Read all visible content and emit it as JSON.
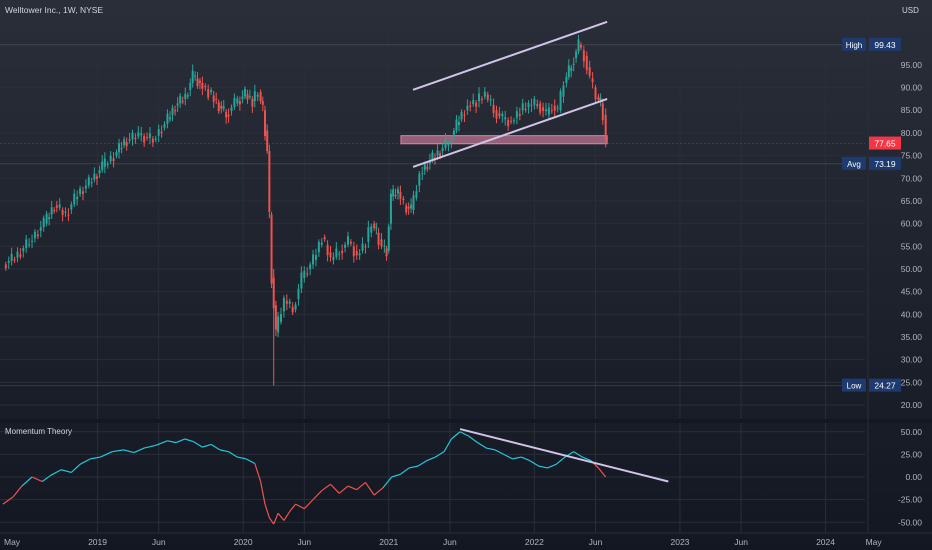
{
  "header": {
    "symbol": "Welltower Inc., 1W, NYSE",
    "currency": "USD"
  },
  "colors": {
    "background_top": "#2a2e39",
    "background_bottom": "#131722",
    "up": "#26a69a",
    "down": "#ef5350",
    "trendline": "#d1c4e9",
    "zone": "#f48fb1",
    "badge_blue": "#1e3a6e",
    "badge_red": "#f23645",
    "momentum_down": "#ef5350",
    "momentum_up": "#26c6da",
    "grid": "#2a2e39"
  },
  "price_axis": {
    "ticks": [
      "95.00",
      "90.00",
      "85.00",
      "80.00",
      "75.00",
      "70.00",
      "65.00",
      "60.00",
      "55.00",
      "50.00",
      "45.00",
      "40.00",
      "35.00",
      "30.00",
      "25.00",
      "20.00"
    ],
    "high_label": "High",
    "high_value": "99.43",
    "last_value": "77.65",
    "avg_label": "Avg",
    "avg_value": "73.19",
    "low_label": "Low",
    "low_value": "24.27"
  },
  "time_axis": {
    "ticks": [
      "May",
      "2019",
      "Jun",
      "2020",
      "Jun",
      "2021",
      "Jun",
      "2022",
      "Jun",
      "2023",
      "Jun",
      "2024",
      "May"
    ]
  },
  "indicator": {
    "name": "Momentum Theory",
    "ticks": [
      "50.00",
      "25.00",
      "0.00",
      "-25.00",
      "-50.00"
    ]
  },
  "chart_data": [
    {
      "type": "candlestick",
      "title": "Welltower Inc., 1W, NYSE",
      "ylabel": "USD",
      "ylim": [
        18,
        104
      ],
      "xlim": [
        "2018-05",
        "2024-05"
      ],
      "grid": true,
      "key_levels": {
        "high": 99.43,
        "avg": 73.19,
        "low": 24.27,
        "last": 77.65
      },
      "annotations": {
        "rising_channel_upper": [
          [
            "2021-03",
            89.5
          ],
          [
            "2022-07",
            104.5
          ]
        ],
        "rising_channel_lower": [
          [
            "2021-03",
            72.5
          ],
          [
            "2022-07",
            87.5
          ]
        ],
        "resistance_zone": {
          "from": "2021-02",
          "to": "2022-07",
          "y0": 77.6,
          "y1": 79.4
        }
      },
      "series": [
        {
          "values": [
            [
              2018.37,
              52.5
            ],
            [
              2018.45,
              56.0
            ],
            [
              2018.55,
              60.0
            ],
            [
              2018.65,
              64.0
            ],
            [
              2018.72,
              62.0
            ],
            [
              2018.8,
              66.5
            ],
            [
              2018.88,
              69.0
            ],
            [
              2018.96,
              72.5
            ],
            [
              2019.05,
              75.0
            ],
            [
              2019.13,
              78.0
            ],
            [
              2019.2,
              79.5
            ],
            [
              2019.3,
              78.5
            ],
            [
              2019.4,
              82.0
            ],
            [
              2019.48,
              86.0
            ],
            [
              2019.55,
              88.0
            ],
            [
              2019.62,
              92.5
            ],
            [
              2019.67,
              91.0
            ],
            [
              2019.72,
              89.0
            ],
            [
              2019.78,
              86.0
            ],
            [
              2019.85,
              84.0
            ],
            [
              2019.9,
              86.5
            ],
            [
              2019.96,
              88.5
            ],
            [
              2020.03,
              87.0
            ],
            [
              2020.08,
              89.0
            ],
            [
              2020.12,
              85.0
            ],
            [
              2020.15,
              76.0
            ],
            [
              2020.18,
              48.0
            ],
            [
              2020.21,
              36.0
            ],
            [
              2020.24,
              43.0
            ],
            [
              2020.3,
              41.0
            ],
            [
              2020.36,
              48.0
            ],
            [
              2020.42,
              52.0
            ],
            [
              2020.5,
              57.0
            ],
            [
              2020.56,
              52.0
            ],
            [
              2020.62,
              54.0
            ],
            [
              2020.68,
              56.0
            ],
            [
              2020.74,
              53.0
            ],
            [
              2020.8,
              56.0
            ],
            [
              2020.86,
              60.0
            ],
            [
              2020.9,
              58.0
            ],
            [
              2020.93,
              55.0
            ],
            [
              2020.97,
              54.0
            ],
            [
              2021.0,
              66.0
            ],
            [
              2021.03,
              67.0
            ],
            [
              2021.08,
              64.0
            ],
            [
              2021.12,
              63.0
            ],
            [
              2021.17,
              71.0
            ],
            [
              2021.23,
              74.0
            ],
            [
              2021.3,
              76.0
            ],
            [
              2021.37,
              78.0
            ],
            [
              2021.43,
              83.0
            ],
            [
              2021.5,
              86.0
            ],
            [
              2021.56,
              87.0
            ],
            [
              2021.62,
              88.5
            ],
            [
              2021.68,
              85.0
            ],
            [
              2021.74,
              83.0
            ],
            [
              2021.8,
              82.5
            ],
            [
              2021.86,
              85.0
            ],
            [
              2021.92,
              86.0
            ],
            [
              2021.98,
              86.5
            ],
            [
              2022.04,
              84.0
            ],
            [
              2022.1,
              86.0
            ],
            [
              2022.14,
              85.0
            ],
            [
              2022.18,
              91.0
            ],
            [
              2022.22,
              95.0
            ],
            [
              2022.27,
              99.4
            ],
            [
              2022.32,
              97.0
            ],
            [
              2022.36,
              92.0
            ],
            [
              2022.4,
              88.0
            ],
            [
              2022.44,
              86.5
            ],
            [
              2022.47,
              84.0
            ],
            [
              2022.49,
              77.6
            ]
          ]
        }
      ]
    },
    {
      "type": "line",
      "title": "Momentum Theory",
      "ylim": [
        -60,
        58
      ],
      "grid": true,
      "annotations": {
        "divergence_line": [
          [
            2021.49,
            53
          ],
          [
            2022.92,
            -5
          ]
        ]
      },
      "series": [
        {
          "values": [
            [
              2018.35,
              -30
            ],
            [
              2018.42,
              -22
            ],
            [
              2018.48,
              -10
            ],
            [
              2018.55,
              0
            ],
            [
              2018.62,
              -5
            ],
            [
              2018.68,
              2
            ],
            [
              2018.75,
              8
            ],
            [
              2018.82,
              5
            ],
            [
              2018.88,
              14
            ],
            [
              2018.95,
              20
            ],
            [
              2019.02,
              22
            ],
            [
              2019.1,
              28
            ],
            [
              2019.18,
              30
            ],
            [
              2019.25,
              27
            ],
            [
              2019.32,
              32
            ],
            [
              2019.4,
              35
            ],
            [
              2019.48,
              40
            ],
            [
              2019.54,
              38
            ],
            [
              2019.6,
              42
            ],
            [
              2019.66,
              39
            ],
            [
              2019.72,
              33
            ],
            [
              2019.78,
              36
            ],
            [
              2019.84,
              30
            ],
            [
              2019.9,
              28
            ],
            [
              2019.96,
              22
            ],
            [
              2020.02,
              20
            ],
            [
              2020.08,
              15
            ],
            [
              2020.12,
              -5
            ],
            [
              2020.15,
              -30
            ],
            [
              2020.18,
              -45
            ],
            [
              2020.21,
              -52
            ],
            [
              2020.24,
              -40
            ],
            [
              2020.28,
              -48
            ],
            [
              2020.32,
              -38
            ],
            [
              2020.36,
              -30
            ],
            [
              2020.42,
              -35
            ],
            [
              2020.48,
              -25
            ],
            [
              2020.54,
              -15
            ],
            [
              2020.6,
              -8
            ],
            [
              2020.66,
              -18
            ],
            [
              2020.72,
              -10
            ],
            [
              2020.78,
              -14
            ],
            [
              2020.84,
              -6
            ],
            [
              2020.9,
              -20
            ],
            [
              2020.96,
              -12
            ],
            [
              2021.02,
              0
            ],
            [
              2021.08,
              3
            ],
            [
              2021.14,
              10
            ],
            [
              2021.2,
              12
            ],
            [
              2021.26,
              18
            ],
            [
              2021.32,
              22
            ],
            [
              2021.38,
              28
            ],
            [
              2021.43,
              42
            ],
            [
              2021.49,
              50
            ],
            [
              2021.55,
              45
            ],
            [
              2021.61,
              38
            ],
            [
              2021.67,
              32
            ],
            [
              2021.73,
              30
            ],
            [
              2021.79,
              25
            ],
            [
              2021.85,
              20
            ],
            [
              2021.91,
              22
            ],
            [
              2021.97,
              18
            ],
            [
              2022.03,
              12
            ],
            [
              2022.09,
              10
            ],
            [
              2022.15,
              14
            ],
            [
              2022.21,
              22
            ],
            [
              2022.27,
              28
            ],
            [
              2022.33,
              22
            ],
            [
              2022.39,
              18
            ],
            [
              2022.44,
              10
            ],
            [
              2022.49,
              0
            ]
          ]
        }
      ]
    }
  ]
}
